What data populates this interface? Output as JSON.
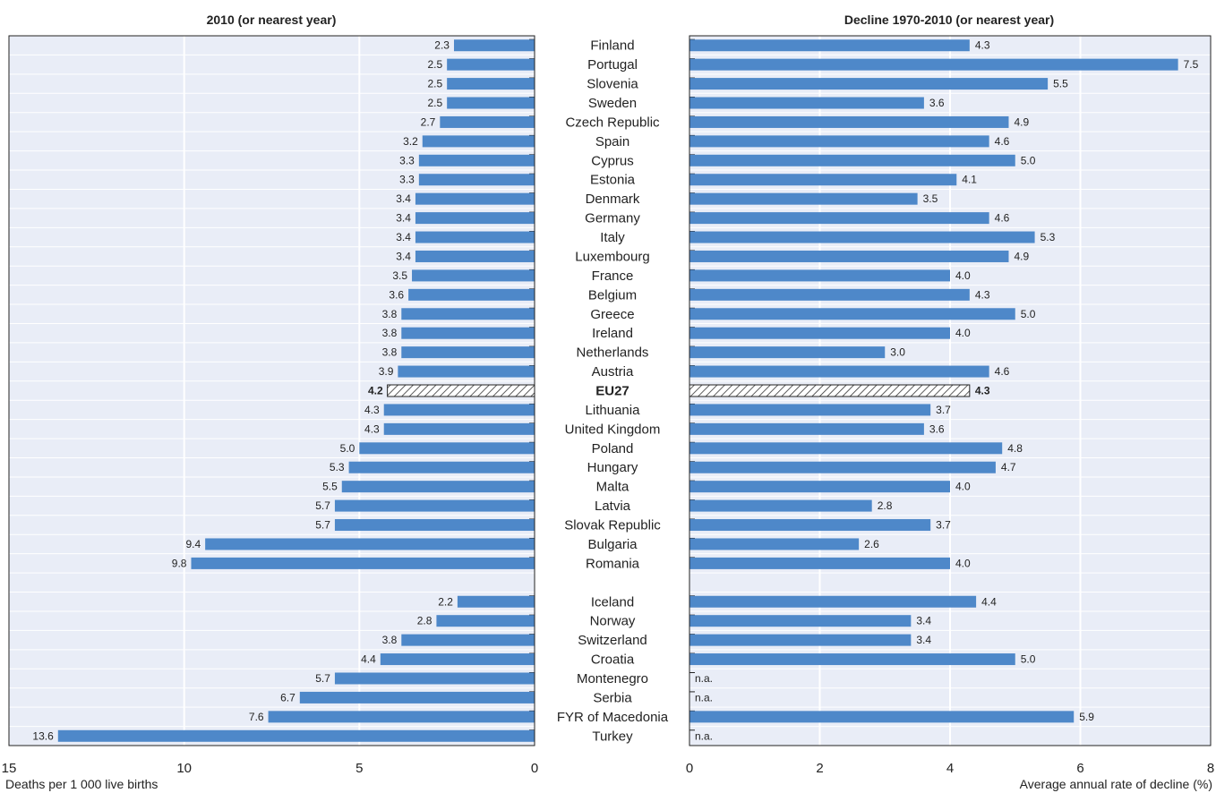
{
  "colors": {
    "bar": "#4e88c9",
    "panel": "#e9edf7",
    "grid": "#ffffff",
    "frame": "#222222",
    "hatch": "#333333"
  },
  "chart_data": [
    {
      "type": "bar",
      "orientation": "horizontal",
      "title": "2010 (or nearest year)",
      "xlabel": "Deaths per 1 000 live births",
      "xlim": [
        15,
        0
      ],
      "xticks": [
        15,
        10,
        5,
        0
      ],
      "grid": true,
      "categories": [
        "Finland",
        "Portugal",
        "Slovenia",
        "Sweden",
        "Czech Republic",
        "Spain",
        "Cyprus",
        "Estonia",
        "Denmark",
        "Germany",
        "Italy",
        "Luxembourg",
        "France",
        "Belgium",
        "Greece",
        "Ireland",
        "Netherlands",
        "Austria",
        "EU27",
        "Lithuania",
        "United Kingdom",
        "Poland",
        "Hungary",
        "Malta",
        "Latvia",
        "Slovak Republic",
        "Bulgaria",
        "Romania",
        "",
        "Iceland",
        "Norway",
        "Switzerland",
        "Croatia",
        "Montenegro",
        "Serbia",
        "FYR of Macedonia",
        "Turkey"
      ],
      "values": [
        2.3,
        2.5,
        2.5,
        2.5,
        2.7,
        3.2,
        3.3,
        3.3,
        3.4,
        3.4,
        3.4,
        3.4,
        3.5,
        3.6,
        3.8,
        3.8,
        3.8,
        3.9,
        4.2,
        4.3,
        4.3,
        5.0,
        5.3,
        5.5,
        5.7,
        5.7,
        9.4,
        9.8,
        null,
        2.2,
        2.8,
        3.8,
        4.4,
        5.7,
        6.7,
        7.6,
        13.6
      ],
      "labels": [
        "2.3",
        "2.5",
        "2.5",
        "2.5",
        "2.7",
        "3.2",
        "3.3",
        "3.3",
        "3.4",
        "3.4",
        "3.4",
        "3.4",
        "3.5",
        "3.6",
        "3.8",
        "3.8",
        "3.8",
        "3.9",
        "4.2",
        "4.3",
        "4.3",
        "5.0",
        "5.3",
        "5.5",
        "5.7",
        "5.7",
        "9.4",
        "9.8",
        "",
        "2.2",
        "2.8",
        "3.8",
        "4.4",
        "5.7",
        "6.7",
        "7.6",
        "13.6"
      ],
      "highlight": "EU27"
    },
    {
      "type": "bar",
      "orientation": "horizontal",
      "title": "Decline 1970-2010 (or nearest year)",
      "xlabel": "Average annual rate of decline (%)",
      "xlim": [
        0,
        8
      ],
      "xticks": [
        0,
        2,
        4,
        6,
        8
      ],
      "grid": true,
      "categories": [
        "Finland",
        "Portugal",
        "Slovenia",
        "Sweden",
        "Czech Republic",
        "Spain",
        "Cyprus",
        "Estonia",
        "Denmark",
        "Germany",
        "Italy",
        "Luxembourg",
        "France",
        "Belgium",
        "Greece",
        "Ireland",
        "Netherlands",
        "Austria",
        "EU27",
        "Lithuania",
        "United Kingdom",
        "Poland",
        "Hungary",
        "Malta",
        "Latvia",
        "Slovak Republic",
        "Bulgaria",
        "Romania",
        "",
        "Iceland",
        "Norway",
        "Switzerland",
        "Croatia",
        "Montenegro",
        "Serbia",
        "FYR of Macedonia",
        "Turkey"
      ],
      "values": [
        4.3,
        7.5,
        5.5,
        3.6,
        4.9,
        4.6,
        5.0,
        4.1,
        3.5,
        4.6,
        5.3,
        4.9,
        4.0,
        4.3,
        5.0,
        4.0,
        3.0,
        4.6,
        4.3,
        3.7,
        3.6,
        4.8,
        4.7,
        4.0,
        2.8,
        3.7,
        2.6,
        4.0,
        null,
        4.4,
        3.4,
        3.4,
        5.0,
        null,
        null,
        5.9,
        null
      ],
      "labels": [
        "4.3",
        "7.5",
        "5.5",
        "3.6",
        "4.9",
        "4.6",
        "5.0",
        "4.1",
        "3.5",
        "4.6",
        "5.3",
        "4.9",
        "4.0",
        "4.3",
        "5.0",
        "4.0",
        "3.0",
        "4.6",
        "4.3",
        "3.7",
        "3.6",
        "4.8",
        "4.7",
        "4.0",
        "2.8",
        "3.7",
        "2.6",
        "4.0",
        "",
        "4.4",
        "3.4",
        "3.4",
        "5.0",
        "n.a.",
        "n.a.",
        "5.9",
        "n.a."
      ],
      "highlight": "EU27"
    }
  ]
}
